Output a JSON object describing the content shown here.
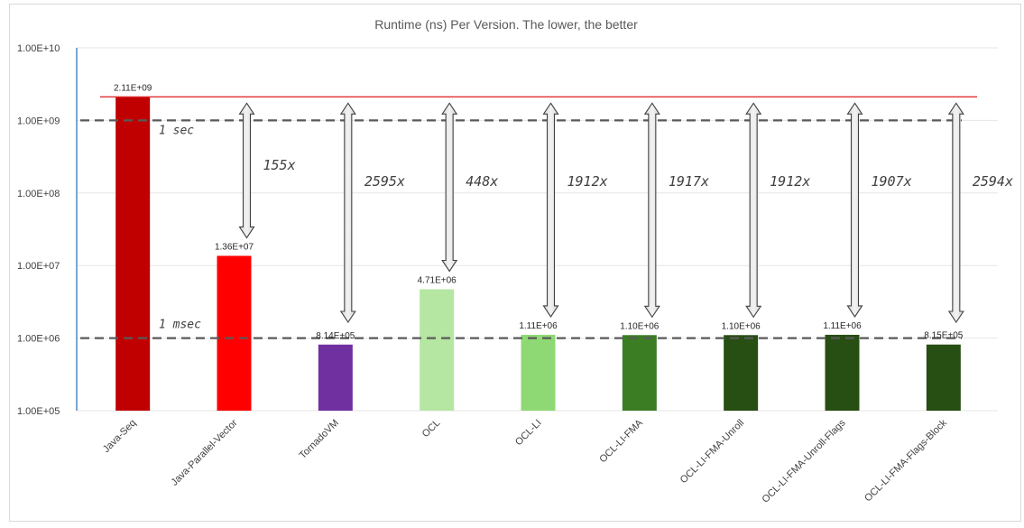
{
  "chart_data": {
    "type": "bar",
    "title": "Runtime (ns) Per Version. The lower, the better",
    "yscale": "log",
    "ylim": [
      100000,
      10000000000
    ],
    "yticks": [
      "1.00E+05",
      "1.00E+06",
      "1.00E+07",
      "1.00E+08",
      "1.00E+09",
      "1.00E+10"
    ],
    "categories": [
      "Java-Seq",
      "Java-Parallel-Vector",
      "TornadoVM",
      "OCL",
      "OCL-LI",
      "OCL-LI-FMA",
      "OCL-LI-FMA-Unroll",
      "OCL-LI-FMA-Unroll-Flags",
      "OCL-LI-FMA-Flags-Block"
    ],
    "values": [
      2110000000,
      13600000,
      814000,
      4710000,
      1110000,
      1100000,
      1100000,
      1110000,
      815000
    ],
    "data_labels": [
      "2.11E+09",
      "1.36E+07",
      "8.14E+05",
      "4.71E+06",
      "1.11E+06",
      "1.10E+06",
      "1.10E+06",
      "1.11E+06",
      "8.15E+05"
    ],
    "bar_colors": [
      "#c00000",
      "#ff0000",
      "#7030a0",
      "#b5e6a2",
      "#8ed973",
      "#3b7d23",
      "#274e13",
      "#274e13",
      "#274e13"
    ],
    "speedups": [
      "",
      "155x",
      "2595x",
      "448x",
      "1912x",
      "1917x",
      "1912x",
      "1907x",
      "2594x"
    ],
    "baseline_value": 2110000000,
    "baseline_color": "#e03030",
    "reference_lines": [
      {
        "label": "1 sec",
        "value": 1000000000
      },
      {
        "label": "1 msec",
        "value": 1000000
      }
    ],
    "grid": true,
    "legend": "none"
  }
}
